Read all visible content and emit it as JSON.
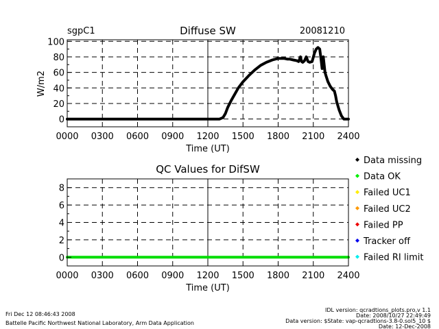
{
  "header": {
    "site": "sgpC1",
    "date": "20081210"
  },
  "chart_data": [
    {
      "type": "line",
      "title": "Diffuse SW",
      "xlabel": "Time (UT)",
      "ylabel": "W/m2",
      "xlim": [
        0,
        2400
      ],
      "ylim": [
        -10,
        102
      ],
      "x_ticks": [
        0,
        300,
        600,
        900,
        1200,
        1500,
        1800,
        2100,
        2400
      ],
      "x_tick_labels": [
        "0000",
        "0300",
        "0600",
        "0900",
        "1200",
        "1500",
        "1800",
        "2100",
        "2400"
      ],
      "y_ticks": [
        0,
        20,
        40,
        60,
        80,
        100
      ],
      "y_tick_labels": [
        "0",
        "20",
        "40",
        "60",
        "80",
        "100"
      ],
      "grid": true,
      "series": [
        {
          "name": "Diffuse SW",
          "color": "#000000",
          "x": [
            0,
            1300,
            1330,
            1350,
            1370,
            1400,
            1430,
            1460,
            1500,
            1550,
            1600,
            1650,
            1700,
            1750,
            1800,
            1850,
            1880,
            1900,
            1930,
            1960,
            1975,
            1990,
            2000,
            2010,
            2025,
            2040,
            2055,
            2070,
            2090,
            2110,
            2125,
            2140,
            2155,
            2165,
            2175,
            2185,
            2200,
            2210,
            2225,
            2245,
            2265,
            2280,
            2290,
            2300,
            2320,
            2340,
            2360,
            2375,
            2400
          ],
          "y": [
            0,
            0,
            2,
            7,
            15,
            24,
            32,
            40,
            48,
            56,
            63,
            69,
            73,
            76,
            78,
            78,
            77,
            77,
            76,
            75,
            74,
            80,
            74,
            73,
            75,
            80,
            74,
            73,
            74,
            85,
            90,
            92,
            90,
            78,
            65,
            80,
            60,
            55,
            48,
            42,
            38,
            36,
            30,
            22,
            12,
            4,
            0,
            0,
            0
          ]
        }
      ]
    },
    {
      "type": "scatter",
      "title": "QC Values for DifSW",
      "xlabel": "Time (UT)",
      "ylabel": "",
      "xlim": [
        0,
        2400
      ],
      "ylim": [
        -1,
        9
      ],
      "x_ticks": [
        0,
        300,
        600,
        900,
        1200,
        1500,
        1800,
        2100,
        2400
      ],
      "x_tick_labels": [
        "0000",
        "0300",
        "0600",
        "0900",
        "1200",
        "1500",
        "1800",
        "2100",
        "2400"
      ],
      "y_ticks": [
        0,
        2,
        4,
        6,
        8
      ],
      "y_tick_labels": [
        "0",
        "2",
        "4",
        "6",
        "8"
      ],
      "grid": true,
      "series": [
        {
          "name": "Data OK",
          "color": "#00dd00",
          "x": [
            0,
            2400
          ],
          "y": [
            0,
            0
          ]
        }
      ]
    }
  ],
  "legend": {
    "items": [
      {
        "label": "Data missing",
        "color": "#000000"
      },
      {
        "label": "Data OK",
        "color": "#00ee00"
      },
      {
        "label": "Failed UC1",
        "color": "#ffee00"
      },
      {
        "label": "Failed UC2",
        "color": "#ff9900"
      },
      {
        "label": "Failed PP",
        "color": "#ee0000"
      },
      {
        "label": "Tracker off",
        "color": "#0000ee"
      },
      {
        "label": "Failed RI limit",
        "color": "#00eeee"
      }
    ]
  },
  "footer": {
    "timestamp": "Fri Dec 12 08:46:43 2008",
    "lab": "Battelle Pacific Northwest National Laboratory, Arm Data Application",
    "idl_version": "IDL version: qcradtions_plots.pro,v 1.1",
    "date_line": "Date: 2008/10/27 22:49:49",
    "data_version": "Data version: $State: vap-qcradtions-3.8-0.sol5_10 $",
    "date2": "Date: 12-Dec-2008"
  }
}
